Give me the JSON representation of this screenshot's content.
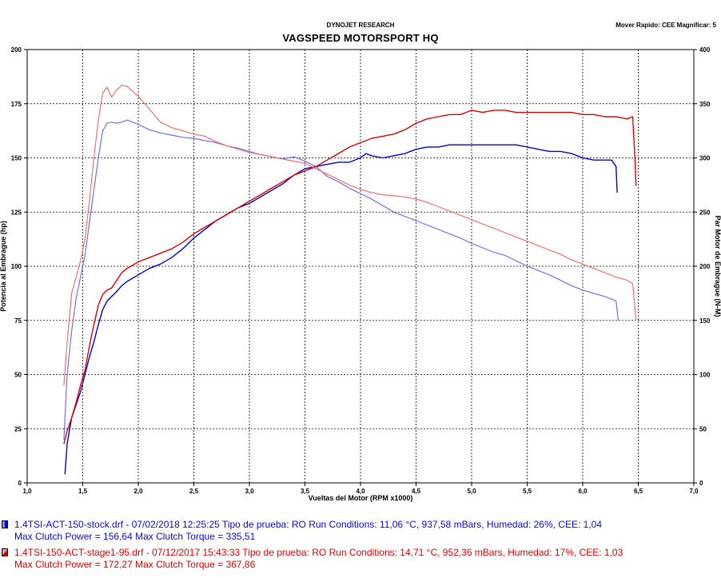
{
  "header": {
    "brand": "DYNOJET RESEARCH",
    "title": "VAGSPEED MOTORSPORT HQ",
    "settings": "Mover Rapido: CEE  Magnificar: 5"
  },
  "runs": [
    {
      "line1": "1.4TSI-ACT-150-stock.drf - 07/02/2018 12:25:25  Tipo de prueba: RO  Run Conditions: 11,06 °C, 937,58 mBars,  Humedad: 26%, CEE: 1,04",
      "line2": "Max Clutch Power = 156,64  Max Clutch Torque = 335,51",
      "color": "#0000d0"
    },
    {
      "line1": "1.4TSI-150-ACT-stage1-95.drf - 07/12/2017 15:43:33  Tipo de prueba: RO  Run Conditions: 14,71 °C, 952,36 mBars,  Humedad: 17%, CEE: 1,03",
      "line2": "Max Clutch Power = 172,27  Max Clutch Torque = 367,86",
      "color": "#e00000"
    }
  ],
  "chart_data": {
    "type": "line",
    "xlabel": "Vueltas del Motor (RPM x1000)",
    "ylabel": "Potencia al Embrague (hp)",
    "y2label": "Par Motor de Embrague (N-M)",
    "xlim": [
      1.0,
      7.0
    ],
    "ylim": [
      0,
      200
    ],
    "y2lim": [
      0,
      400
    ],
    "x_ticks": [
      "1,0",
      "1,5",
      "2,0",
      "2,5",
      "3,0",
      "3,5",
      "4,0",
      "4,5",
      "5,0",
      "5,5",
      "6,0",
      "6,5",
      "7,0"
    ],
    "y_ticks": [
      "0",
      "25",
      "50",
      "75",
      "100",
      "125",
      "150",
      "175",
      "200"
    ],
    "y2_ticks": [
      "0",
      "50",
      "100",
      "150",
      "200",
      "250",
      "300",
      "350",
      "400"
    ],
    "grid": true,
    "series": [
      {
        "run": 0,
        "metric": "power",
        "axis": "left",
        "color": "#0000d0",
        "width": 1.4,
        "points": [
          [
            1.34,
            4
          ],
          [
            1.36,
            18
          ],
          [
            1.4,
            30
          ],
          [
            1.44,
            36
          ],
          [
            1.48,
            42
          ],
          [
            1.52,
            50
          ],
          [
            1.56,
            58
          ],
          [
            1.6,
            65
          ],
          [
            1.64,
            73
          ],
          [
            1.68,
            80
          ],
          [
            1.72,
            84
          ],
          [
            1.76,
            86
          ],
          [
            1.8,
            88
          ],
          [
            1.85,
            91
          ],
          [
            1.9,
            93
          ],
          [
            2.0,
            96
          ],
          [
            2.1,
            99
          ],
          [
            2.2,
            101
          ],
          [
            2.3,
            104
          ],
          [
            2.4,
            108
          ],
          [
            2.5,
            113
          ],
          [
            2.6,
            117
          ],
          [
            2.7,
            121
          ],
          [
            2.8,
            124
          ],
          [
            2.9,
            127
          ],
          [
            3.0,
            129
          ],
          [
            3.1,
            132
          ],
          [
            3.2,
            135
          ],
          [
            3.3,
            138
          ],
          [
            3.4,
            142
          ],
          [
            3.5,
            145
          ],
          [
            3.6,
            146
          ],
          [
            3.7,
            147
          ],
          [
            3.8,
            148
          ],
          [
            3.9,
            148
          ],
          [
            4.0,
            150
          ],
          [
            4.05,
            152
          ],
          [
            4.1,
            151
          ],
          [
            4.2,
            150
          ],
          [
            4.3,
            151
          ],
          [
            4.4,
            152
          ],
          [
            4.5,
            154
          ],
          [
            4.6,
            155
          ],
          [
            4.7,
            155
          ],
          [
            4.8,
            156
          ],
          [
            4.9,
            156
          ],
          [
            5.0,
            156
          ],
          [
            5.1,
            156
          ],
          [
            5.2,
            156
          ],
          [
            5.3,
            156
          ],
          [
            5.4,
            156
          ],
          [
            5.5,
            155
          ],
          [
            5.6,
            154
          ],
          [
            5.7,
            153
          ],
          [
            5.8,
            153
          ],
          [
            5.9,
            152
          ],
          [
            6.0,
            150
          ],
          [
            6.1,
            149
          ],
          [
            6.2,
            149
          ],
          [
            6.26,
            149
          ],
          [
            6.3,
            146
          ],
          [
            6.31,
            134
          ]
        ]
      },
      {
        "run": 0,
        "metric": "torque",
        "axis": "right",
        "color": "#7070ee",
        "width": 1.2,
        "points": [
          [
            1.33,
            40
          ],
          [
            1.36,
            100
          ],
          [
            1.4,
            140
          ],
          [
            1.44,
            170
          ],
          [
            1.48,
            190
          ],
          [
            1.52,
            210
          ],
          [
            1.56,
            240
          ],
          [
            1.6,
            270
          ],
          [
            1.64,
            300
          ],
          [
            1.68,
            325
          ],
          [
            1.72,
            332
          ],
          [
            1.76,
            333
          ],
          [
            1.8,
            332
          ],
          [
            1.85,
            333
          ],
          [
            1.9,
            335
          ],
          [
            2.0,
            331
          ],
          [
            2.1,
            326
          ],
          [
            2.2,
            323
          ],
          [
            2.3,
            321
          ],
          [
            2.4,
            319
          ],
          [
            2.5,
            318
          ],
          [
            2.6,
            316
          ],
          [
            2.7,
            314
          ],
          [
            2.8,
            311
          ],
          [
            2.9,
            309
          ],
          [
            3.0,
            306
          ],
          [
            3.1,
            303
          ],
          [
            3.2,
            301
          ],
          [
            3.3,
            299
          ],
          [
            3.4,
            301
          ],
          [
            3.5,
            297
          ],
          [
            3.6,
            292
          ],
          [
            3.7,
            283
          ],
          [
            3.8,
            278
          ],
          [
            3.9,
            272
          ],
          [
            4.0,
            267
          ],
          [
            4.1,
            262
          ],
          [
            4.2,
            256
          ],
          [
            4.3,
            250
          ],
          [
            4.4,
            246
          ],
          [
            4.5,
            242
          ],
          [
            4.6,
            238
          ],
          [
            4.7,
            234
          ],
          [
            4.8,
            230
          ],
          [
            4.9,
            226
          ],
          [
            5.0,
            221
          ],
          [
            5.1,
            217
          ],
          [
            5.2,
            213
          ],
          [
            5.3,
            210
          ],
          [
            5.4,
            205
          ],
          [
            5.5,
            200
          ],
          [
            5.6,
            196
          ],
          [
            5.7,
            192
          ],
          [
            5.8,
            187
          ],
          [
            5.9,
            182
          ],
          [
            6.0,
            178
          ],
          [
            6.1,
            175
          ],
          [
            6.2,
            172
          ],
          [
            6.3,
            168
          ],
          [
            6.32,
            150
          ]
        ]
      },
      {
        "run": 1,
        "metric": "power",
        "axis": "left",
        "color": "#e00000",
        "width": 1.4,
        "points": [
          [
            1.33,
            18
          ],
          [
            1.36,
            24
          ],
          [
            1.4,
            30
          ],
          [
            1.44,
            37
          ],
          [
            1.48,
            45
          ],
          [
            1.52,
            52
          ],
          [
            1.56,
            63
          ],
          [
            1.6,
            73
          ],
          [
            1.64,
            82
          ],
          [
            1.68,
            87
          ],
          [
            1.72,
            89
          ],
          [
            1.76,
            90
          ],
          [
            1.8,
            93
          ],
          [
            1.85,
            97
          ],
          [
            1.9,
            99
          ],
          [
            2.0,
            102
          ],
          [
            2.1,
            104
          ],
          [
            2.2,
            106
          ],
          [
            2.3,
            108
          ],
          [
            2.4,
            111
          ],
          [
            2.5,
            115
          ],
          [
            2.6,
            118
          ],
          [
            2.7,
            121
          ],
          [
            2.8,
            124
          ],
          [
            2.9,
            127
          ],
          [
            3.0,
            130
          ],
          [
            3.1,
            133
          ],
          [
            3.2,
            136
          ],
          [
            3.3,
            139
          ],
          [
            3.4,
            142
          ],
          [
            3.5,
            144
          ],
          [
            3.6,
            146
          ],
          [
            3.7,
            149
          ],
          [
            3.8,
            152
          ],
          [
            3.9,
            155
          ],
          [
            4.0,
            157
          ],
          [
            4.1,
            159
          ],
          [
            4.2,
            160
          ],
          [
            4.3,
            161
          ],
          [
            4.4,
            163
          ],
          [
            4.5,
            166
          ],
          [
            4.6,
            168
          ],
          [
            4.7,
            169
          ],
          [
            4.8,
            170
          ],
          [
            4.9,
            170
          ],
          [
            5.0,
            172
          ],
          [
            5.1,
            171
          ],
          [
            5.2,
            172
          ],
          [
            5.3,
            172
          ],
          [
            5.4,
            171
          ],
          [
            5.5,
            171
          ],
          [
            5.6,
            171
          ],
          [
            5.7,
            171
          ],
          [
            5.8,
            171
          ],
          [
            5.9,
            171
          ],
          [
            6.0,
            170
          ],
          [
            6.1,
            170
          ],
          [
            6.2,
            169
          ],
          [
            6.3,
            169
          ],
          [
            6.4,
            168
          ],
          [
            6.45,
            169
          ],
          [
            6.47,
            150
          ],
          [
            6.48,
            137
          ]
        ]
      },
      {
        "run": 1,
        "metric": "torque",
        "axis": "right",
        "color": "#f07070",
        "width": 1.2,
        "points": [
          [
            1.33,
            90
          ],
          [
            1.36,
            130
          ],
          [
            1.4,
            175
          ],
          [
            1.44,
            190
          ],
          [
            1.48,
            205
          ],
          [
            1.52,
            225
          ],
          [
            1.56,
            260
          ],
          [
            1.6,
            300
          ],
          [
            1.64,
            335
          ],
          [
            1.68,
            360
          ],
          [
            1.72,
            365
          ],
          [
            1.76,
            356
          ],
          [
            1.8,
            362
          ],
          [
            1.85,
            367
          ],
          [
            1.9,
            366
          ],
          [
            2.0,
            357
          ],
          [
            2.1,
            345
          ],
          [
            2.2,
            333
          ],
          [
            2.3,
            328
          ],
          [
            2.4,
            325
          ],
          [
            2.5,
            322
          ],
          [
            2.6,
            320
          ],
          [
            2.7,
            315
          ],
          [
            2.8,
            311
          ],
          [
            2.9,
            308
          ],
          [
            3.0,
            305
          ],
          [
            3.1,
            303
          ],
          [
            3.2,
            301
          ],
          [
            3.3,
            299
          ],
          [
            3.4,
            297
          ],
          [
            3.5,
            295
          ],
          [
            3.6,
            290
          ],
          [
            3.7,
            285
          ],
          [
            3.8,
            280
          ],
          [
            3.9,
            275
          ],
          [
            4.0,
            271
          ],
          [
            4.1,
            268
          ],
          [
            4.2,
            266
          ],
          [
            4.3,
            265
          ],
          [
            4.4,
            264
          ],
          [
            4.5,
            262
          ],
          [
            4.6,
            259
          ],
          [
            4.7,
            255
          ],
          [
            4.8,
            251
          ],
          [
            4.9,
            247
          ],
          [
            5.0,
            243
          ],
          [
            5.1,
            239
          ],
          [
            5.2,
            235
          ],
          [
            5.3,
            231
          ],
          [
            5.4,
            227
          ],
          [
            5.5,
            223
          ],
          [
            5.6,
            219
          ],
          [
            5.7,
            215
          ],
          [
            5.8,
            211
          ],
          [
            5.9,
            206
          ],
          [
            6.0,
            202
          ],
          [
            6.1,
            198
          ],
          [
            6.2,
            194
          ],
          [
            6.3,
            190
          ],
          [
            6.4,
            187
          ],
          [
            6.45,
            184
          ],
          [
            6.48,
            150
          ]
        ]
      }
    ]
  }
}
